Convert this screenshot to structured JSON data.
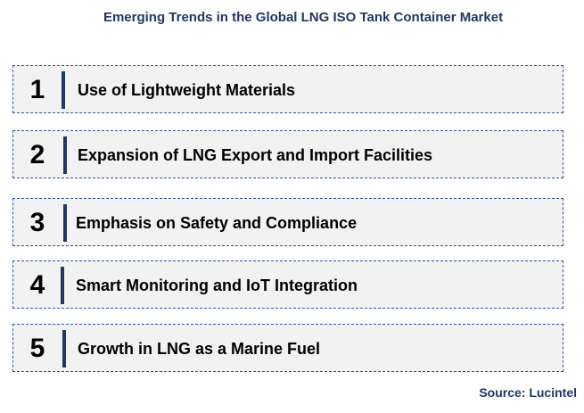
{
  "title": "Emerging Trends in the Global LNG ISO Tank Container Market",
  "trends": [
    {
      "number": "1",
      "label": "Use of Lightweight Materials"
    },
    {
      "number": "2",
      "label": "Expansion of LNG Export and Import Facilities"
    },
    {
      "number": "3",
      "label": "Emphasis on Safety and Compliance"
    },
    {
      "number": "4",
      "label": "Smart Monitoring and IoT Integration"
    },
    {
      "number": "5",
      "label": "Growth in LNG as a Marine Fuel"
    }
  ],
  "source": "Source: Lucintel",
  "colors": {
    "title": "#1f3864",
    "border": "#2f5597",
    "divider": "#1f3864",
    "box_fill": "#f2f2f2"
  }
}
